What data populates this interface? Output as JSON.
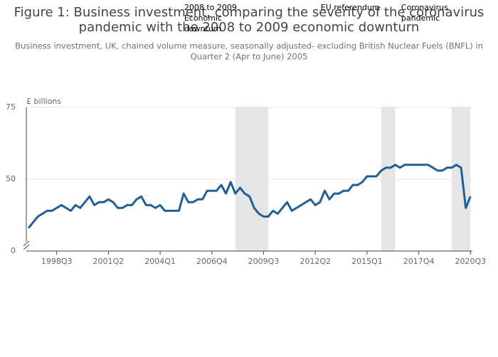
{
  "chart_data": {
    "type": "line",
    "title": [
      "Figure 1: Business investment, comparing the severity of the coronavirus",
      "pandemic with the 2008 to 2009 economic downturn"
    ],
    "subtitle": [
      "Business investment, UK, chained volume measure, seasonally adjusted- excluding British Nuclear Fuels (BNFL) in",
      "Quarter 2 (Apr to June) 2005"
    ],
    "y_label": "£ billions",
    "categories": [
      null,
      null,
      null,
      null,
      null,
      null,
      "1998Q3",
      null,
      null,
      null,
      null,
      null,
      null,
      null,
      null,
      null,
      null,
      "2001Q2",
      null,
      null,
      null,
      null,
      null,
      null,
      null,
      null,
      null,
      null,
      "2004Q1",
      null,
      null,
      null,
      null,
      null,
      null,
      null,
      null,
      null,
      null,
      "2006Q4",
      null,
      null,
      null,
      null,
      null,
      null,
      null,
      null,
      null,
      null,
      "2009Q3",
      null,
      null,
      null,
      null,
      null,
      null,
      null,
      null,
      null,
      null,
      "2012Q2",
      null,
      null,
      null,
      null,
      null,
      null,
      null,
      null,
      null,
      null,
      "2015Q1",
      null,
      null,
      null,
      null,
      null,
      null,
      null,
      null,
      null,
      null,
      "2017Q4",
      null,
      null,
      null,
      null,
      null,
      null,
      null,
      null,
      null,
      null,
      "2020Q3"
    ],
    "series": [
      {
        "color": "#206095",
        "values": [
          33,
          35,
          37,
          38,
          39,
          39,
          40,
          41,
          40,
          39,
          41,
          40,
          42,
          44,
          41,
          42,
          42,
          43,
          42,
          40,
          40,
          41,
          41,
          43,
          44,
          41,
          41,
          40,
          41,
          39,
          39,
          39,
          39,
          45,
          42,
          42,
          43,
          43,
          46,
          46,
          46,
          48,
          45,
          49,
          45,
          47,
          45,
          44,
          40,
          38,
          37,
          37,
          39,
          38,
          40,
          42,
          39,
          40,
          41,
          42,
          43,
          41,
          42,
          46,
          43,
          45,
          45,
          46,
          46,
          48,
          48,
          49,
          51,
          51,
          51,
          53,
          54,
          54,
          55,
          54,
          55,
          55,
          55,
          55,
          55,
          55,
          54,
          53,
          53,
          54,
          54,
          55,
          54,
          40,
          44
        ]
      }
    ],
    "shaded": [
      {
        "label": [
          "2008 to 2009",
          "Economic",
          "downturn"
        ],
        "x_start": 44,
        "x_end": 51
      },
      {
        "label": [
          "EU referendum"
        ],
        "x_start": 75,
        "x_end": 78
      },
      {
        "label": [
          "Coronavirus",
          "pandemic"
        ],
        "x_start": 90,
        "x_end": 94
      }
    ],
    "shade_color": "#e5e5e5",
    "ylim": [
      25,
      75
    ],
    "yticks": [
      0,
      50,
      75
    ],
    "y_axis_break": true,
    "grid": true
  }
}
